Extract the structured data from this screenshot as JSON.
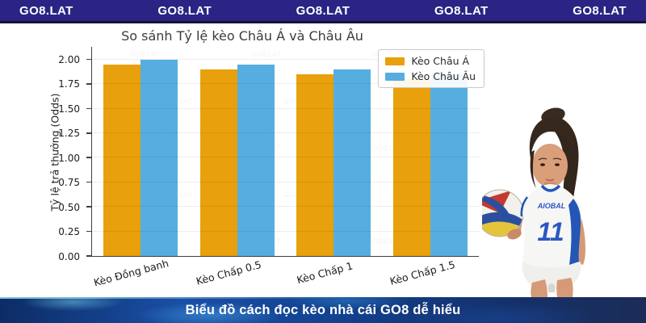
{
  "banner": {
    "bg_color": "#2b2484",
    "text_color": "#ffffff",
    "items": [
      "GO8.LAT",
      "GO8.LAT",
      "GO8.LAT",
      "GO8.LAT",
      "GO8.LAT"
    ]
  },
  "chart_data": {
    "type": "bar",
    "title": "So sánh Tỷ lệ kèo Châu Á và Châu Âu",
    "categories": [
      "Kèo Đồng banh",
      "Kèo Chấp 0.5",
      "Kèo Chấp 1",
      "Kèo Chấp 1.5"
    ],
    "series": [
      {
        "name": "Kèo Châu Á",
        "color": "#e8a00c",
        "values": [
          1.95,
          1.9,
          1.85,
          1.8
        ]
      },
      {
        "name": "Kèo Châu Âu",
        "color": "#56aee0",
        "values": [
          2.0,
          1.95,
          1.9,
          1.85
        ]
      }
    ],
    "xlabel": "",
    "ylabel": "Tỷ lệ trả thưởng (Odds)",
    "ylim": [
      0,
      2.0
    ],
    "ytick_step": 0.25,
    "grid": true,
    "gridline_style": "dotted",
    "legend_position": "top-right"
  },
  "watermark": {
    "text": "GO8.LAT"
  },
  "player_image": {
    "jersey_text": "AIOBAL",
    "jersey_number": "11"
  },
  "footer": {
    "caption": "Biểu đồ cách đọc kèo nhà cái GO8 dễ hiểu",
    "text_color": "#ffffff"
  }
}
